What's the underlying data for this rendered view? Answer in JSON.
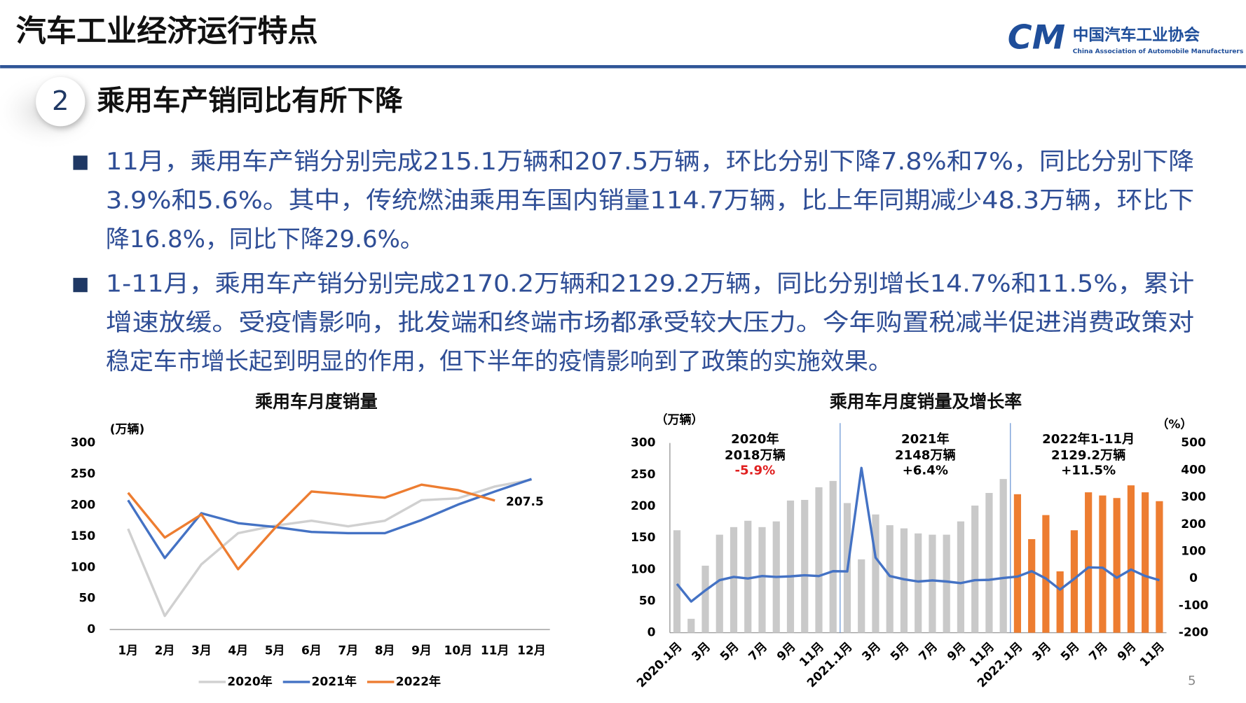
{
  "header": {
    "title": "汽车工业经济运行特点",
    "logo_mark": "CM",
    "logo_cn": "中国汽车工业协会",
    "logo_en": "China Association of Automobile Manufacturers"
  },
  "section": {
    "number": "2",
    "title": "乘用车产销同比有所下降"
  },
  "bullets": [
    [
      "11月，乘用车产销分别完成215.1万辆和207.5万辆，环比分别下降7.8%和7%，同比分别下降",
      "3.9%和5.6%。其中，传统燃油乘用车国内销量114.7万辆，比上年同期减少48.3万辆，环比下",
      "降16.8%，同比下降29.6%。"
    ],
    [
      "1-11月，乘用车产销分别完成2170.2万辆和2129.2万辆，同比分别增长14.7%和11.5%，累计",
      "增速放缓。受疫情影响，批发端和终端市场都承受较大压力。今年购置税减半促进消费政策对",
      "稳定车市增长起到明显的作用，但下半年的疫情影响到了政策的实施效果。"
    ]
  ],
  "page_number": "5",
  "chart_data": [
    {
      "type": "line",
      "title": "乘用车月度销量",
      "y_unit": "(万辆)",
      "categories": [
        "1月",
        "2月",
        "3月",
        "4月",
        "5月",
        "6月",
        "7月",
        "8月",
        "9月",
        "10月",
        "11月",
        "12月"
      ],
      "series": [
        {
          "name": "2020年",
          "color": "#d0d0d0",
          "values": [
            162,
            22,
            105,
            155,
            167,
            175,
            166,
            175,
            208,
            211,
            230,
            241
          ]
        },
        {
          "name": "2021年",
          "color": "#4472c4",
          "values": [
            208,
            115,
            187,
            171,
            165,
            157,
            155,
            155,
            176,
            201,
            222,
            242
          ]
        },
        {
          "name": "2022年",
          "color": "#ed7d31",
          "values": [
            220,
            148,
            185,
            97,
            163,
            222,
            217,
            212,
            233,
            224,
            207.5,
            null
          ],
          "value_labels": [
            null,
            null,
            null,
            null,
            null,
            null,
            null,
            null,
            null,
            null,
            "207.5",
            null
          ]
        }
      ],
      "ylim": [
        0,
        300
      ],
      "yticks": [
        0,
        50,
        100,
        150,
        200,
        250,
        300
      ],
      "legend": "bottom"
    },
    {
      "type": "bar",
      "title": "乘用车月度销量及增长率",
      "y_unit": "（万辆）",
      "y2_unit": "（%）",
      "categories": [
        "2020.1月",
        null,
        "3月",
        null,
        "5月",
        null,
        "7月",
        null,
        "9月",
        null,
        "11月",
        null,
        "2021.1月",
        null,
        "3月",
        null,
        "5月",
        null,
        "7月",
        null,
        "9月",
        null,
        "11月",
        null,
        "2022.1月",
        null,
        "3月",
        null,
        "5月",
        null,
        "7月",
        null,
        "9月",
        null,
        "11月"
      ],
      "series": [
        {
          "color": "#c9c9c9",
          "values": [
            162,
            22,
            106,
            155,
            167,
            177,
            167,
            176,
            209,
            210,
            230,
            240,
            205,
            116,
            187,
            170,
            165,
            157,
            155,
            155,
            176,
            201,
            221,
            243,
            null,
            null,
            null,
            null,
            null,
            null,
            null,
            null,
            null,
            null,
            null
          ]
        },
        {
          "color": "#ed7d31",
          "values": [
            null,
            null,
            null,
            null,
            null,
            null,
            null,
            null,
            null,
            null,
            null,
            null,
            null,
            null,
            null,
            null,
            null,
            null,
            null,
            null,
            null,
            null,
            null,
            null,
            219,
            148,
            186,
            97,
            162,
            222,
            217,
            213,
            233,
            222,
            208
          ]
        },
        {
          "type": "line",
          "axis": "y2",
          "color": "#4472c4",
          "values": [
            -20,
            -85,
            -44,
            -6,
            6,
            0,
            9,
            6,
            8,
            12,
            9,
            27,
            26,
            408,
            77,
            9,
            -3,
            -11,
            -7,
            -11,
            -17,
            -6,
            -5,
            2,
            7,
            27,
            0,
            -41,
            -1,
            41,
            40,
            3,
            33,
            9,
            -6
          ]
        }
      ],
      "ylim": [
        0,
        300
      ],
      "yticks": [
        0,
        50,
        100,
        150,
        200,
        250,
        300
      ],
      "y2lim": [
        -200,
        500
      ],
      "y2ticks": [
        -200,
        -100,
        0,
        100,
        200,
        300,
        400,
        500
      ],
      "annotations": [
        {
          "title": "2020年",
          "total": "2018万辆",
          "growth": "-5.9%",
          "growth_color": "#e02020"
        },
        {
          "title": "2021年",
          "total": "2148万辆",
          "growth": "+6.4%",
          "growth_color": "#000000"
        },
        {
          "title": "2022年1-11月",
          "total": "2129.2万辆",
          "growth": "+11.5%",
          "growth_color": "#000000"
        }
      ]
    }
  ]
}
